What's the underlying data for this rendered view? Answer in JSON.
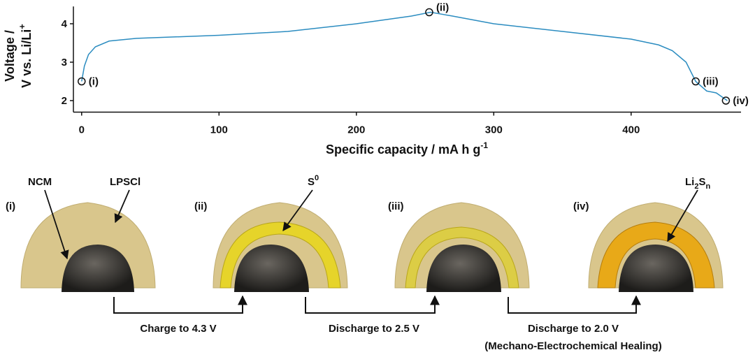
{
  "chart_data": {
    "type": "line",
    "xlabel": {
      "text": "Specific capacity / mA h g",
      "sup": "-1"
    },
    "ylabel": {
      "line1": "Voltage /",
      "line2": "V vs. Li/Li",
      "sup": "+"
    },
    "xlim": [
      -6,
      480
    ],
    "ylim": [
      1.7,
      4.45
    ],
    "xticks": [
      0,
      100,
      200,
      300,
      400
    ],
    "yticks": [
      2,
      3,
      4
    ],
    "series": [
      {
        "color": "#2b8cc0",
        "x": [
          0,
          2,
          5,
          10,
          20,
          40,
          100,
          150,
          200,
          240,
          254,
          270,
          300,
          350,
          400,
          420,
          430,
          440,
          447,
          455,
          462,
          470
        ],
        "values": [
          2.5,
          2.9,
          3.2,
          3.4,
          3.55,
          3.62,
          3.7,
          3.8,
          4.0,
          4.2,
          4.3,
          4.2,
          4.0,
          3.8,
          3.6,
          3.45,
          3.3,
          3.0,
          2.5,
          2.25,
          2.2,
          2.0
        ]
      }
    ],
    "markers": [
      {
        "x": 0,
        "y": 2.5,
        "label": "(i)"
      },
      {
        "x": 253,
        "y": 4.3,
        "label": "(ii)"
      },
      {
        "x": 447,
        "y": 2.5,
        "label": "(iii)"
      },
      {
        "x": 469,
        "y": 2.0,
        "label": "(iv)"
      }
    ]
  },
  "diagram": {
    "panels": [
      "(i)",
      "(ii)",
      "(iii)",
      "(iv)"
    ],
    "labels": {
      "ncm": "NCM",
      "lpscl": "LPSCl",
      "s0": {
        "base": "S",
        "sup": "0"
      },
      "li2sn": {
        "a": "Li",
        "sub1": "2",
        "b": "S",
        "sub2": "n"
      }
    },
    "steps": [
      "Charge to 4.3 V",
      "Discharge to 2.5 V",
      "Discharge to 2.0 V"
    ],
    "note": "(Mechano-Electrochemical Healing)"
  }
}
